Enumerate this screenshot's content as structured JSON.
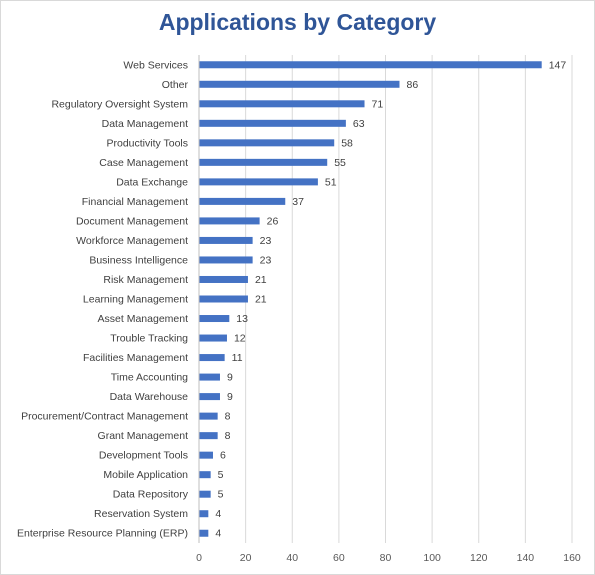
{
  "chart_data": {
    "type": "bar",
    "orientation": "horizontal",
    "title": "Applications by Category",
    "xlabel": "",
    "ylabel": "",
    "xlim": [
      0,
      160
    ],
    "xticks": [
      0,
      20,
      40,
      60,
      80,
      100,
      120,
      140,
      160
    ],
    "grid": "vertical",
    "data_labels": true,
    "color": "#4472c4",
    "categories": [
      "Web Services",
      "Other",
      "Regulatory Oversight System",
      "Data Management",
      "Productivity Tools",
      "Case Management",
      "Data Exchange",
      "Financial Management",
      "Document Management",
      "Workforce Management",
      "Business Intelligence",
      "Risk Management",
      "Learning Management",
      "Asset Management",
      "Trouble Tracking",
      "Facilities Management",
      "Time Accounting",
      "Data Warehouse",
      "Procurement/Contract Management",
      "Grant Management",
      "Development Tools",
      "Mobile Application",
      "Data Repository",
      "Reservation System",
      "Enterprise Resource Planning (ERP)"
    ],
    "values": [
      147,
      86,
      71,
      63,
      58,
      55,
      51,
      37,
      26,
      23,
      23,
      21,
      21,
      13,
      12,
      11,
      9,
      9,
      8,
      8,
      6,
      5,
      5,
      4,
      4
    ]
  }
}
